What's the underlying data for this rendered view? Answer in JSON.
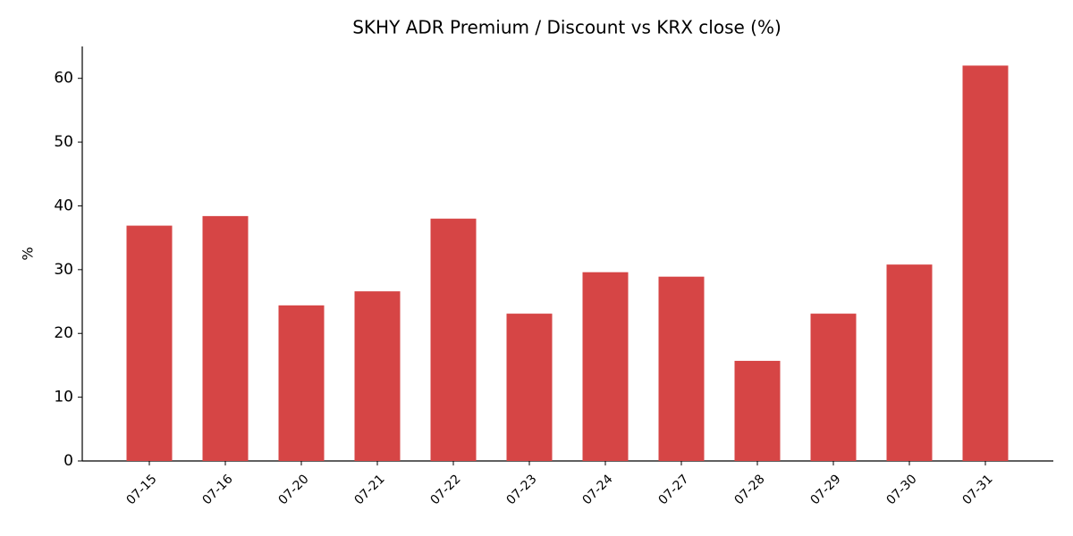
{
  "chart_data": {
    "type": "bar",
    "title": "SKHY ADR Premium / Discount vs KRX close (%)",
    "y_label": "%",
    "categories": [
      "07-15",
      "07-16",
      "07-20",
      "07-21",
      "07-22",
      "07-23",
      "07-24",
      "07-27",
      "07-28",
      "07-29",
      "07-30",
      "07-31"
    ],
    "values": [
      36.9,
      38.4,
      24.4,
      26.6,
      38.0,
      23.1,
      29.6,
      28.9,
      15.7,
      23.1,
      30.8,
      62.0
    ],
    "color": "#d64545",
    "ylim": [
      0,
      65
    ],
    "yticks": [
      0,
      10,
      20,
      30,
      40,
      50,
      60
    ],
    "grid": false
  }
}
